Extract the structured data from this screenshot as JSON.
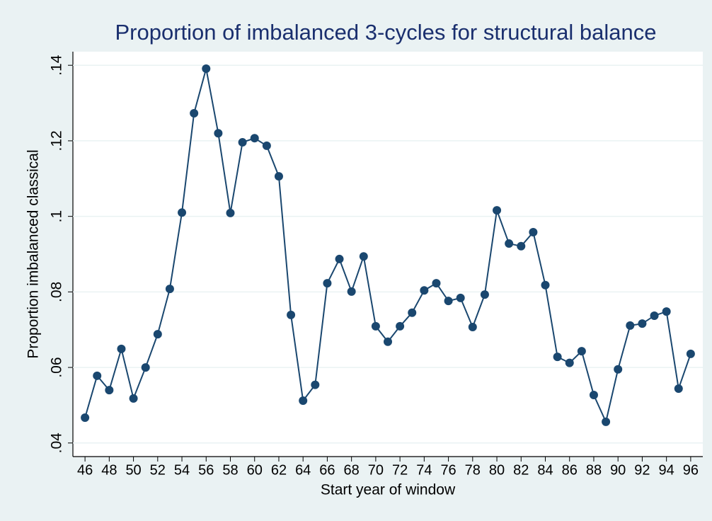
{
  "chart_data": {
    "type": "line",
    "title": "Proportion of imbalanced 3-cycles for structural balance",
    "x_label": "Start year of window",
    "y_label": "Proportion imbalanced classical",
    "x": [
      46,
      47,
      48,
      49,
      50,
      51,
      52,
      53,
      54,
      55,
      56,
      57,
      58,
      59,
      60,
      61,
      62,
      63,
      64,
      65,
      66,
      67,
      68,
      69,
      70,
      71,
      72,
      73,
      74,
      75,
      76,
      77,
      78,
      79,
      80,
      81,
      82,
      83,
      84,
      85,
      86,
      87,
      88,
      89,
      90,
      91,
      92,
      93,
      94,
      95,
      96
    ],
    "series": [
      {
        "name": "Proportion imbalanced classical",
        "color": "#1a476f",
        "values": [
          0.0467,
          0.0578,
          0.054,
          0.0649,
          0.0518,
          0.06,
          0.0688,
          0.0808,
          0.101,
          0.1273,
          0.1391,
          0.122,
          0.1009,
          0.1196,
          0.1207,
          0.1187,
          0.1106,
          0.0739,
          0.0512,
          0.0554,
          0.0823,
          0.0887,
          0.0801,
          0.0894,
          0.0709,
          0.0668,
          0.0709,
          0.0745,
          0.0804,
          0.0823,
          0.0776,
          0.0784,
          0.0707,
          0.0793,
          0.1016,
          0.0928,
          0.0921,
          0.0958,
          0.0818,
          0.0628,
          0.0612,
          0.0643,
          0.0527,
          0.0456,
          0.0595,
          0.0711,
          0.0716,
          0.0737,
          0.0748,
          0.0544,
          0.0636
        ]
      }
    ],
    "xlim": [
      45,
      97
    ],
    "xticks": [
      46,
      48,
      50,
      52,
      54,
      56,
      58,
      60,
      62,
      64,
      66,
      68,
      70,
      72,
      74,
      76,
      78,
      80,
      82,
      84,
      86,
      88,
      90,
      92,
      94,
      96
    ],
    "ylim": [
      0.0364,
      0.1436
    ],
    "yticks": [
      {
        "value": 0.04,
        "label": ".04"
      },
      {
        "value": 0.06,
        "label": ".06"
      },
      {
        "value": 0.08,
        "label": ".08"
      },
      {
        "value": 0.1,
        "label": ".1"
      },
      {
        "value": 0.12,
        "label": ".12"
      },
      {
        "value": 0.14,
        "label": ".14"
      }
    ],
    "grid": true
  }
}
